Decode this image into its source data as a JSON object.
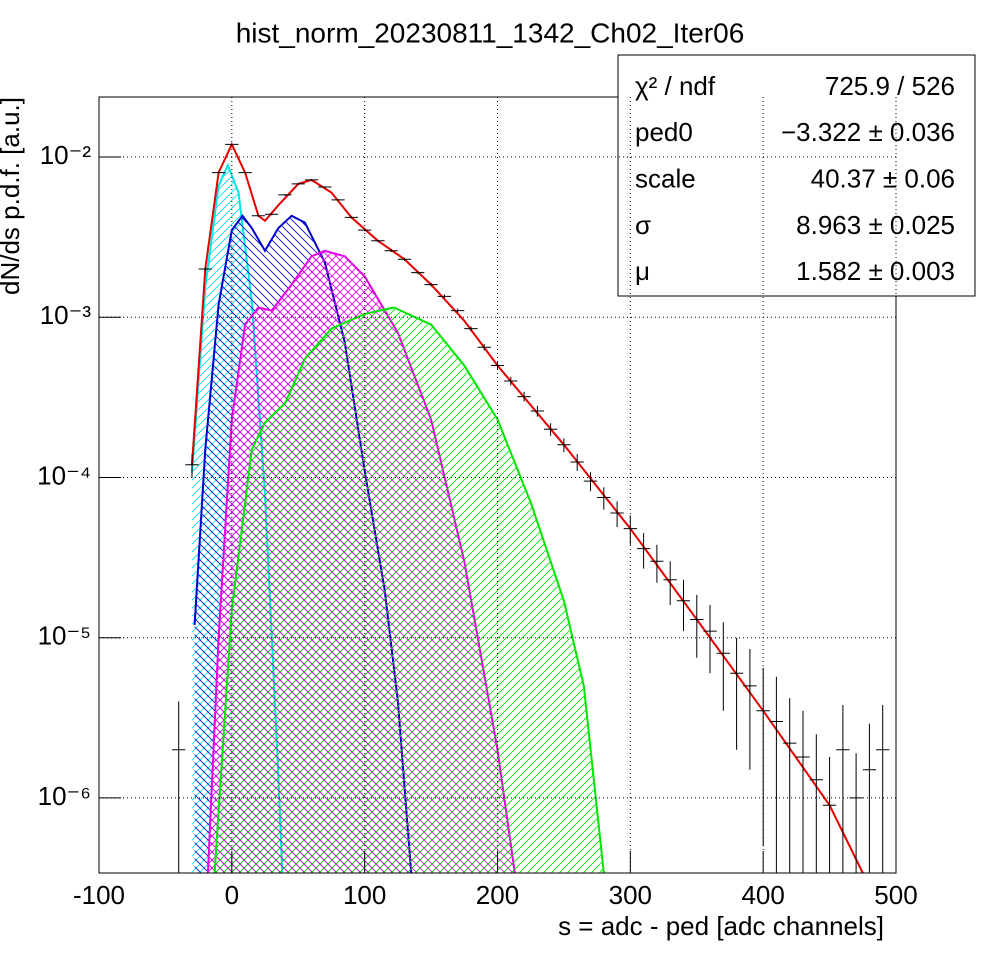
{
  "chart_data": {
    "type": "line",
    "title": "hist_norm_20230811_1342_Ch02_Iter06",
    "x_label": "s = adc - ped [adc channels]",
    "y_label": "dN/ds p.d.f. [a.u.]",
    "xlim": [
      -100,
      500
    ],
    "xticks": [
      -100,
      0,
      100,
      200,
      300,
      400,
      500
    ],
    "ylim": [
      3.4e-07,
      0.0237
    ],
    "y_scale": "log",
    "yticks": [
      {
        "value": 1e-06,
        "label": "10⁻⁶"
      },
      {
        "value": 1e-05,
        "label": "10⁻⁵"
      },
      {
        "value": 0.0001,
        "label": "10⁻⁴"
      },
      {
        "value": 0.001,
        "label": "10⁻³"
      },
      {
        "value": 0.01,
        "label": "10⁻²"
      }
    ],
    "grid": true,
    "stats": [
      {
        "label": "χ² / ndf",
        "value": "725.9 / 526"
      },
      {
        "label": "ped0",
        "value": "−3.322 ± 0.036"
      },
      {
        "label": "scale",
        "value": "40.37 ± 0.06"
      },
      {
        "label": "σ",
        "value": "8.963 ± 0.025"
      },
      {
        "label": "μ",
        "value": "1.582 ± 0.003"
      }
    ],
    "histogram": {
      "color": "#000000",
      "x": [
        -40,
        -30,
        -20,
        -10,
        0,
        10,
        20,
        30,
        40,
        50,
        60,
        70,
        80,
        90,
        100,
        110,
        120,
        130,
        140,
        150,
        160,
        170,
        180,
        190,
        200,
        210,
        220,
        230,
        240,
        250,
        260,
        270,
        280,
        290,
        300,
        310,
        320,
        330,
        340,
        350,
        360,
        370,
        380,
        390,
        400,
        410,
        420,
        430,
        440,
        450,
        460,
        470,
        480,
        490
      ],
      "values": [
        2e-06,
        0.00012,
        0.002,
        0.008,
        0.012,
        0.008,
        0.0043,
        0.0044,
        0.0058,
        0.0068,
        0.0072,
        0.0065,
        0.0054,
        0.0042,
        0.0035,
        0.003,
        0.0026,
        0.0023,
        0.0019,
        0.0016,
        0.00135,
        0.0011,
        0.00085,
        0.00065,
        0.0005,
        0.0004,
        0.00032,
        0.00026,
        0.0002,
        0.00016,
        0.000125,
        9.5e-05,
        7.5e-05,
        6e-05,
        4.8e-05,
        3.6e-05,
        3e-05,
        2.3e-05,
        1.7e-05,
        1.3e-05,
        1.1e-05,
        8e-06,
        6e-06,
        5e-06,
        3.5e-06,
        3e-06,
        2.2e-06,
        1.8e-06,
        1.3e-06,
        9e-07,
        2e-06,
        1e-06,
        1.5e-06,
        2e-06
      ],
      "errors": [
        2e-06,
        2e-05,
        6e-05,
        0.0001,
        0.00012,
        0.0001,
        7e-05,
        7e-05,
        8e-05,
        8e-05,
        8e-05,
        8e-05,
        7e-05,
        6e-05,
        6e-05,
        5e-05,
        5e-05,
        5e-05,
        4e-05,
        4e-05,
        4e-05,
        3.5e-05,
        3e-05,
        3e-05,
        3e-05,
        2.5e-05,
        2.2e-05,
        2e-05,
        1.8e-05,
        1.6e-05,
        1.5e-05,
        1.3e-05,
        1.2e-05,
        1.1e-05,
        1e-05,
        9e-06,
        8e-06,
        7e-06,
        6e-06,
        5.5e-06,
        5e-06,
        4.5e-06,
        4e-06,
        3.5e-06,
        3e-06,
        2.7e-06,
        2e-06,
        1.7e-06,
        1.2e-06,
        9e-07,
        1.8e-06,
        9e-07,
        1.4e-06,
        1.8e-06
      ]
    },
    "series": [
      {
        "color": "#00e5e5",
        "hatch": "/",
        "x": [
          -30,
          -20,
          -10,
          -3,
          5,
          15,
          25,
          35,
          38
        ],
        "values": [
          0.000107,
          0.00155,
          0.0066,
          0.0089,
          0.006,
          0.00126,
          7.8e-05,
          1.4e-06,
          3.4e-07
        ]
      },
      {
        "color": "#0000cc",
        "hatch": "\\",
        "x": [
          -28,
          -20,
          -10,
          0,
          8,
          15,
          25,
          35,
          45,
          55,
          70,
          85,
          100,
          115,
          125,
          135
        ],
        "values": [
          1.2e-05,
          0.00015,
          0.0012,
          0.0035,
          0.0043,
          0.0036,
          0.0026,
          0.0036,
          0.0043,
          0.0039,
          0.0022,
          0.0007,
          0.00011,
          2e-05,
          4e-06,
          3.4e-07
        ]
      },
      {
        "color": "#e600e6",
        "hatch": "x",
        "x": [
          -18,
          -10,
          0,
          10,
          20,
          30,
          45,
          60,
          70,
          85,
          100,
          125,
          150,
          175,
          200,
          213
        ],
        "values": [
          3.4e-07,
          1e-05,
          0.00023,
          0.0009,
          0.00115,
          0.0011,
          0.0016,
          0.0024,
          0.0026,
          0.0024,
          0.0018,
          0.0008,
          0.00023,
          3e-05,
          2e-06,
          3.4e-07
        ]
      },
      {
        "color": "#00e600",
        "hatch": "/",
        "x": [
          -13,
          0,
          15,
          25,
          40,
          55,
          75,
          100,
          122,
          150,
          175,
          200,
          225,
          250,
          265,
          280
        ],
        "values": [
          3.4e-07,
          1.5e-05,
          0.00015,
          0.00022,
          0.00029,
          0.00055,
          0.00085,
          0.00105,
          0.00115,
          0.0009,
          0.0005,
          0.00023,
          7e-05,
          1.7e-05,
          5e-06,
          3.4e-07
        ]
      },
      {
        "color": "#e60000",
        "x": [
          -30,
          -20,
          -10,
          0,
          10,
          20,
          25,
          35,
          50,
          60,
          75,
          90,
          110,
          130,
          150,
          175,
          200,
          250,
          300,
          350,
          400,
          450,
          475
        ],
        "values": [
          0.00012,
          0.002,
          0.008,
          0.012,
          0.008,
          0.0043,
          0.004,
          0.005,
          0.0068,
          0.0072,
          0.006,
          0.0042,
          0.003,
          0.0023,
          0.0016,
          0.00095,
          0.0005,
          0.00016,
          4.8e-05,
          1.3e-05,
          3.5e-06,
          9e-07,
          3.4e-07
        ]
      }
    ]
  }
}
